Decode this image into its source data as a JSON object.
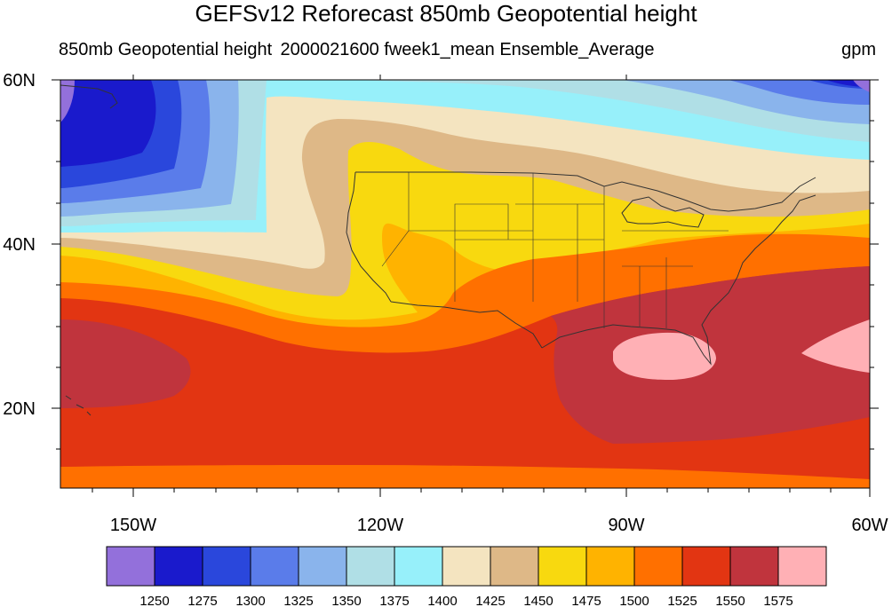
{
  "title": "GEFSv12 Reforecast 850mb Geopotential height",
  "left_subtitle": "850mb Geopotential height",
  "center_subtitle": "2000021600 fweek1_mean Ensemble_Average",
  "units": "gpm",
  "lat_labels": [
    "60N",
    "40N",
    "20N"
  ],
  "lon_labels": [
    "150W",
    "120W",
    "90W",
    "60W"
  ],
  "colorbar": {
    "colors": [
      "#9370db",
      "#1a1acc",
      "#2a47dc",
      "#5a7cea",
      "#8ab4ec",
      "#b0dfe6",
      "#97f0fa",
      "#f4e4c0",
      "#deb887",
      "#f8d90f",
      "#ffb300",
      "#ff7000",
      "#e23512",
      "#c0343d",
      "#ffb0b5"
    ],
    "labels": [
      "1250",
      "1275",
      "1300",
      "1325",
      "1350",
      "1375",
      "1400",
      "1425",
      "1450",
      "1475",
      "1500",
      "1525",
      "1550",
      "1575"
    ]
  }
}
